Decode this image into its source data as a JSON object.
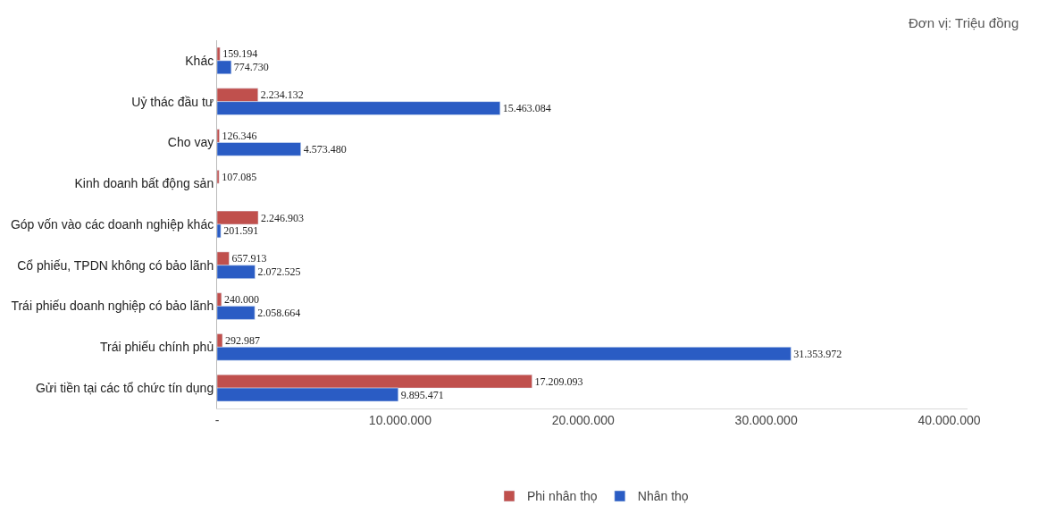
{
  "chart_data": {
    "type": "bar",
    "orientation": "horizontal",
    "annotations": [
      "Đơn vị: Triệu đồng"
    ],
    "categories": [
      "Khác",
      "Uỷ thác đầu tư",
      "Cho vay",
      "Kinh doanh bất động sản",
      "Góp vốn vào các doanh nghiệp khác",
      "Cổ phiếu, TPDN không có bảo lãnh",
      "Trái phiếu doanh nghiệp có bảo lãnh",
      "Trái phiếu chính phủ",
      "Gửi tiền tại các tổ chức tín dụng"
    ],
    "series": [
      {
        "name": "Phi nhân thọ",
        "color": "#c0504d",
        "values": [
          159194,
          2234132,
          126346,
          107085,
          2246903,
          657913,
          240000,
          292987,
          17209093
        ],
        "value_labels": [
          "159.194",
          "2.234.132",
          "126.346",
          "107.085",
          "2.246.903",
          "657.913",
          "240.000",
          "292.987",
          "17.209.093"
        ]
      },
      {
        "name": "Nhân thọ",
        "color": "#2a5cc4",
        "values": [
          774730,
          15463084,
          4573480,
          null,
          201591,
          2072525,
          2058664,
          31353972,
          9895471
        ],
        "value_labels": [
          "774.730",
          "15.463.084",
          "4.573.480",
          null,
          "201.591",
          "2.072.525",
          "2.058.664",
          "31.353.972",
          "9.895.471"
        ]
      }
    ],
    "xlim": [
      0,
      41000000
    ],
    "xticks": [
      {
        "value": 0,
        "label": "-"
      },
      {
        "value": 10000000,
        "label": "10.000.000"
      },
      {
        "value": 20000000,
        "label": "20.000.000"
      },
      {
        "value": 30000000,
        "label": "30.000.000"
      },
      {
        "value": 40000000,
        "label": "40.000.000"
      }
    ],
    "legend": "bottom"
  }
}
